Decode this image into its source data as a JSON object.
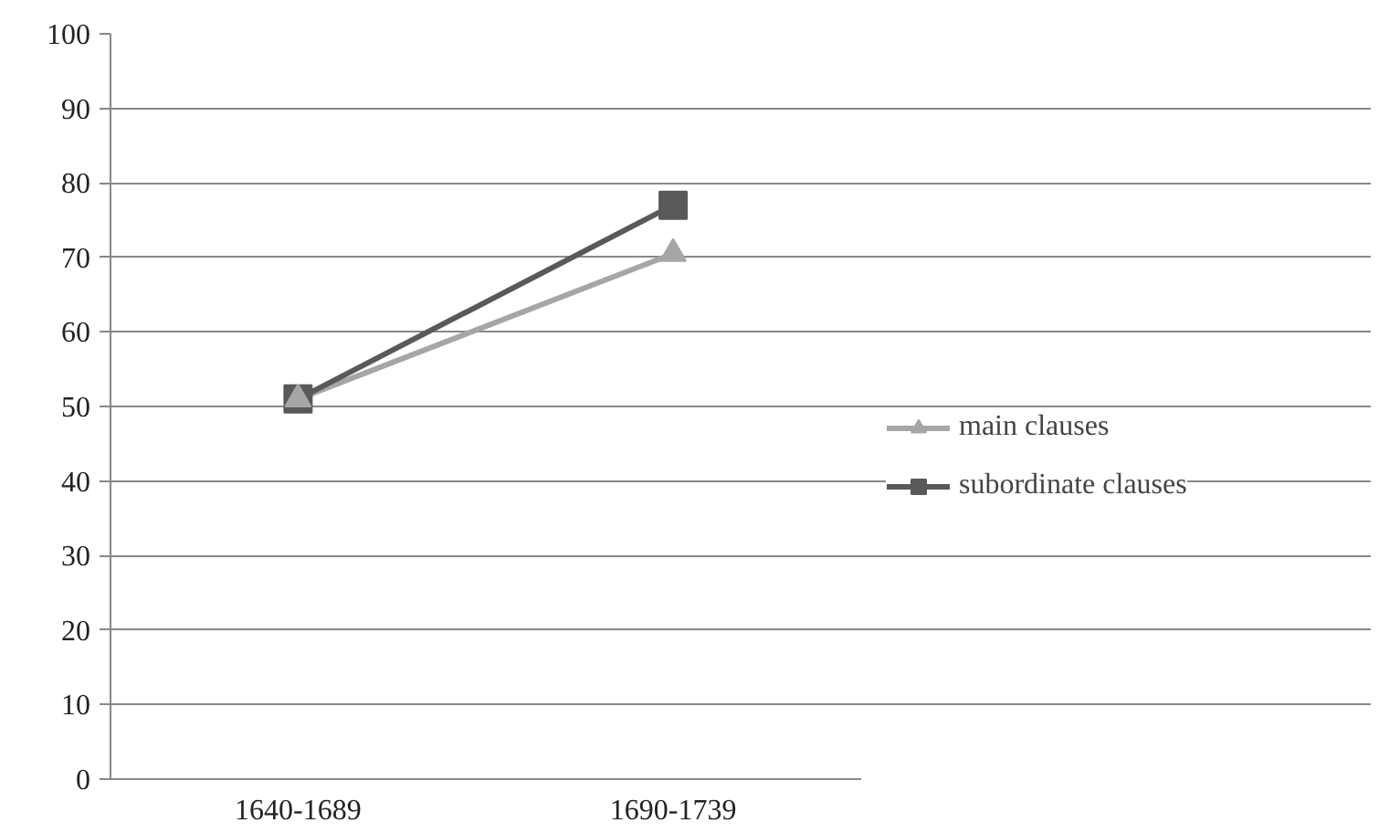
{
  "chart_data": {
    "type": "line",
    "categories": [
      "1640-1689",
      "1690-1739"
    ],
    "series": [
      {
        "name": "main clauses",
        "color": "#a6a6a6",
        "marker": "triangle",
        "values": [
          51,
          70.5
        ]
      },
      {
        "name": "subordinate clauses",
        "color": "#595959",
        "marker": "square",
        "values": [
          51,
          77
        ]
      }
    ],
    "ylim": [
      0,
      100
    ],
    "yticks": [
      0,
      10,
      20,
      30,
      40,
      50,
      60,
      70,
      80,
      90,
      100
    ],
    "grid": "y",
    "legend": "right",
    "line_style": "solid"
  }
}
